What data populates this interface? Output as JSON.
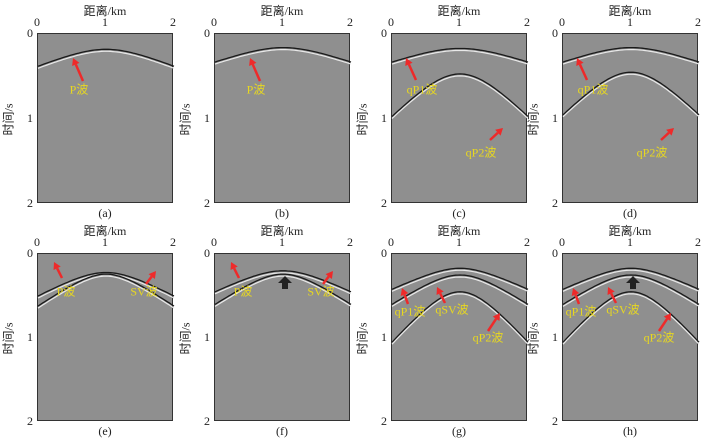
{
  "axes": {
    "x_title": "距离/km",
    "y_title": "时间/s",
    "x_ticks": [
      "0",
      "1",
      "2"
    ],
    "y_ticks": [
      "0",
      "1",
      "2"
    ]
  },
  "colors": {
    "background": "#8f8f8f",
    "annotation_arrow": "#ee2a2a",
    "annotation_text": "#e8d820",
    "marker_arrow": "#222222"
  },
  "panels": [
    {
      "caption": "(a)",
      "labels": [
        "P波"
      ],
      "marker_arrow": false
    },
    {
      "caption": "(b)",
      "labels": [
        "P波"
      ],
      "marker_arrow": false
    },
    {
      "caption": "(c)",
      "labels": [
        "qP1波",
        "qP2波"
      ],
      "marker_arrow": false
    },
    {
      "caption": "(d)",
      "labels": [
        "qP1波",
        "qP2波"
      ],
      "marker_arrow": false
    },
    {
      "caption": "(e)",
      "labels": [
        "P波",
        "SV波"
      ],
      "marker_arrow": false
    },
    {
      "caption": "(f)",
      "labels": [
        "P波",
        "SV波"
      ],
      "marker_arrow": true
    },
    {
      "caption": "(g)",
      "labels": [
        "qP1波",
        "qSV波",
        "qP2波"
      ],
      "marker_arrow": false
    },
    {
      "caption": "(h)",
      "labels": [
        "qP1波",
        "qSV波",
        "qP2波"
      ],
      "marker_arrow": true
    }
  ]
}
